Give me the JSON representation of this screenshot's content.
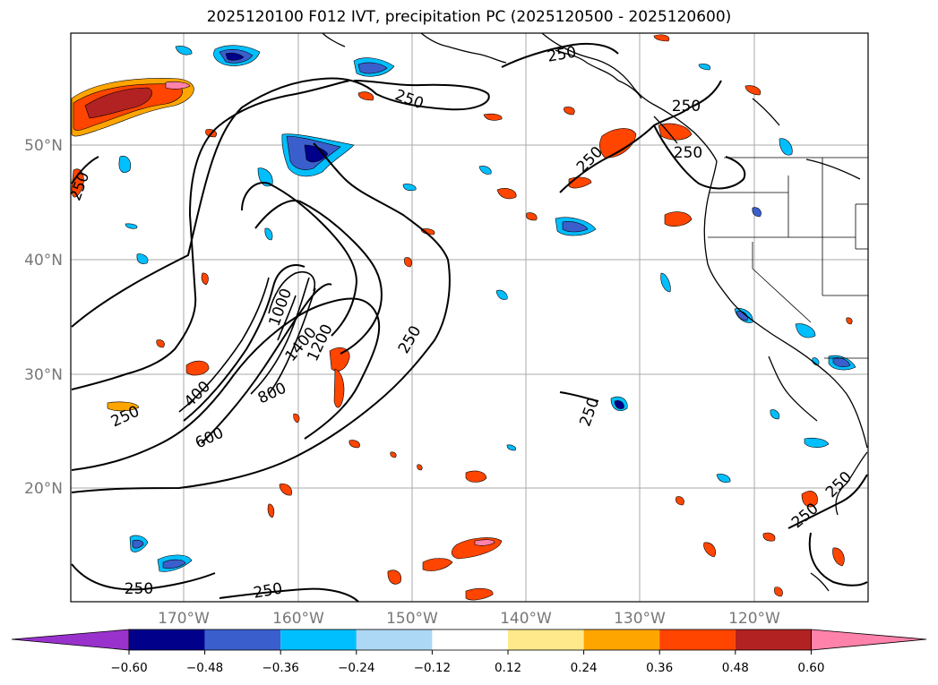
{
  "title": "2025120100 F012 IVT, precipitation PC (2025120500 - 2025120600)",
  "lat_labels": [
    "50°N",
    "40°N",
    "30°N",
    "20°N"
  ],
  "lon_labels": [
    "170°W",
    "160°W",
    "150°W",
    "140°W",
    "130°W",
    "120°W"
  ],
  "colorbar": {
    "ticks": [
      "−0.60",
      "−0.48",
      "−0.36",
      "−0.24",
      "−0.12",
      "0.12",
      "0.24",
      "0.36",
      "0.48",
      "0.60"
    ],
    "colors": [
      "#9932cc",
      "#00008b",
      "#3a5fcd",
      "#00bfff",
      "#add8f5",
      "#ffffff",
      "#ffe98a",
      "#ffa500",
      "#ff4500",
      "#b22222",
      "#ff82ab"
    ]
  },
  "contour_labels": [
    "250",
    "250",
    "250",
    "250",
    "250",
    "250",
    "250",
    "250",
    "250",
    "250",
    "250",
    "250",
    "250",
    "400",
    "600",
    "800",
    "1000",
    "1200",
    "1400"
  ]
}
